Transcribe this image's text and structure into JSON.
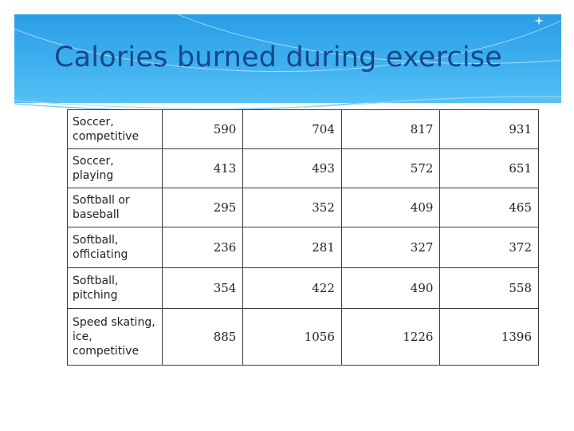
{
  "slide": {
    "title": "Calories burned during exercise"
  },
  "colors": {
    "header_top": "#2a9ee6",
    "header_bottom": "#55c0f4",
    "title": "#17478c"
  },
  "icons": {
    "header_sparkle": "sparkle-icon"
  },
  "table": {
    "rows": [
      {
        "label": "Soccer, competitive",
        "values": [
          "590",
          "704",
          "817",
          "931"
        ]
      },
      {
        "label": "Soccer, playing",
        "values": [
          "413",
          "493",
          "572",
          "651"
        ]
      },
      {
        "label": "Softball or baseball",
        "values": [
          "295",
          "352",
          "409",
          "465"
        ]
      },
      {
        "label": "Softball, officiating",
        "values": [
          "236",
          "281",
          "327",
          "372"
        ]
      },
      {
        "label": "Softball, pitching",
        "values": [
          "354",
          "422",
          "490",
          "558"
        ]
      },
      {
        "label": "Speed skating, ice, competitive",
        "values": [
          "885",
          "1056",
          "1226",
          "1396"
        ]
      }
    ]
  }
}
